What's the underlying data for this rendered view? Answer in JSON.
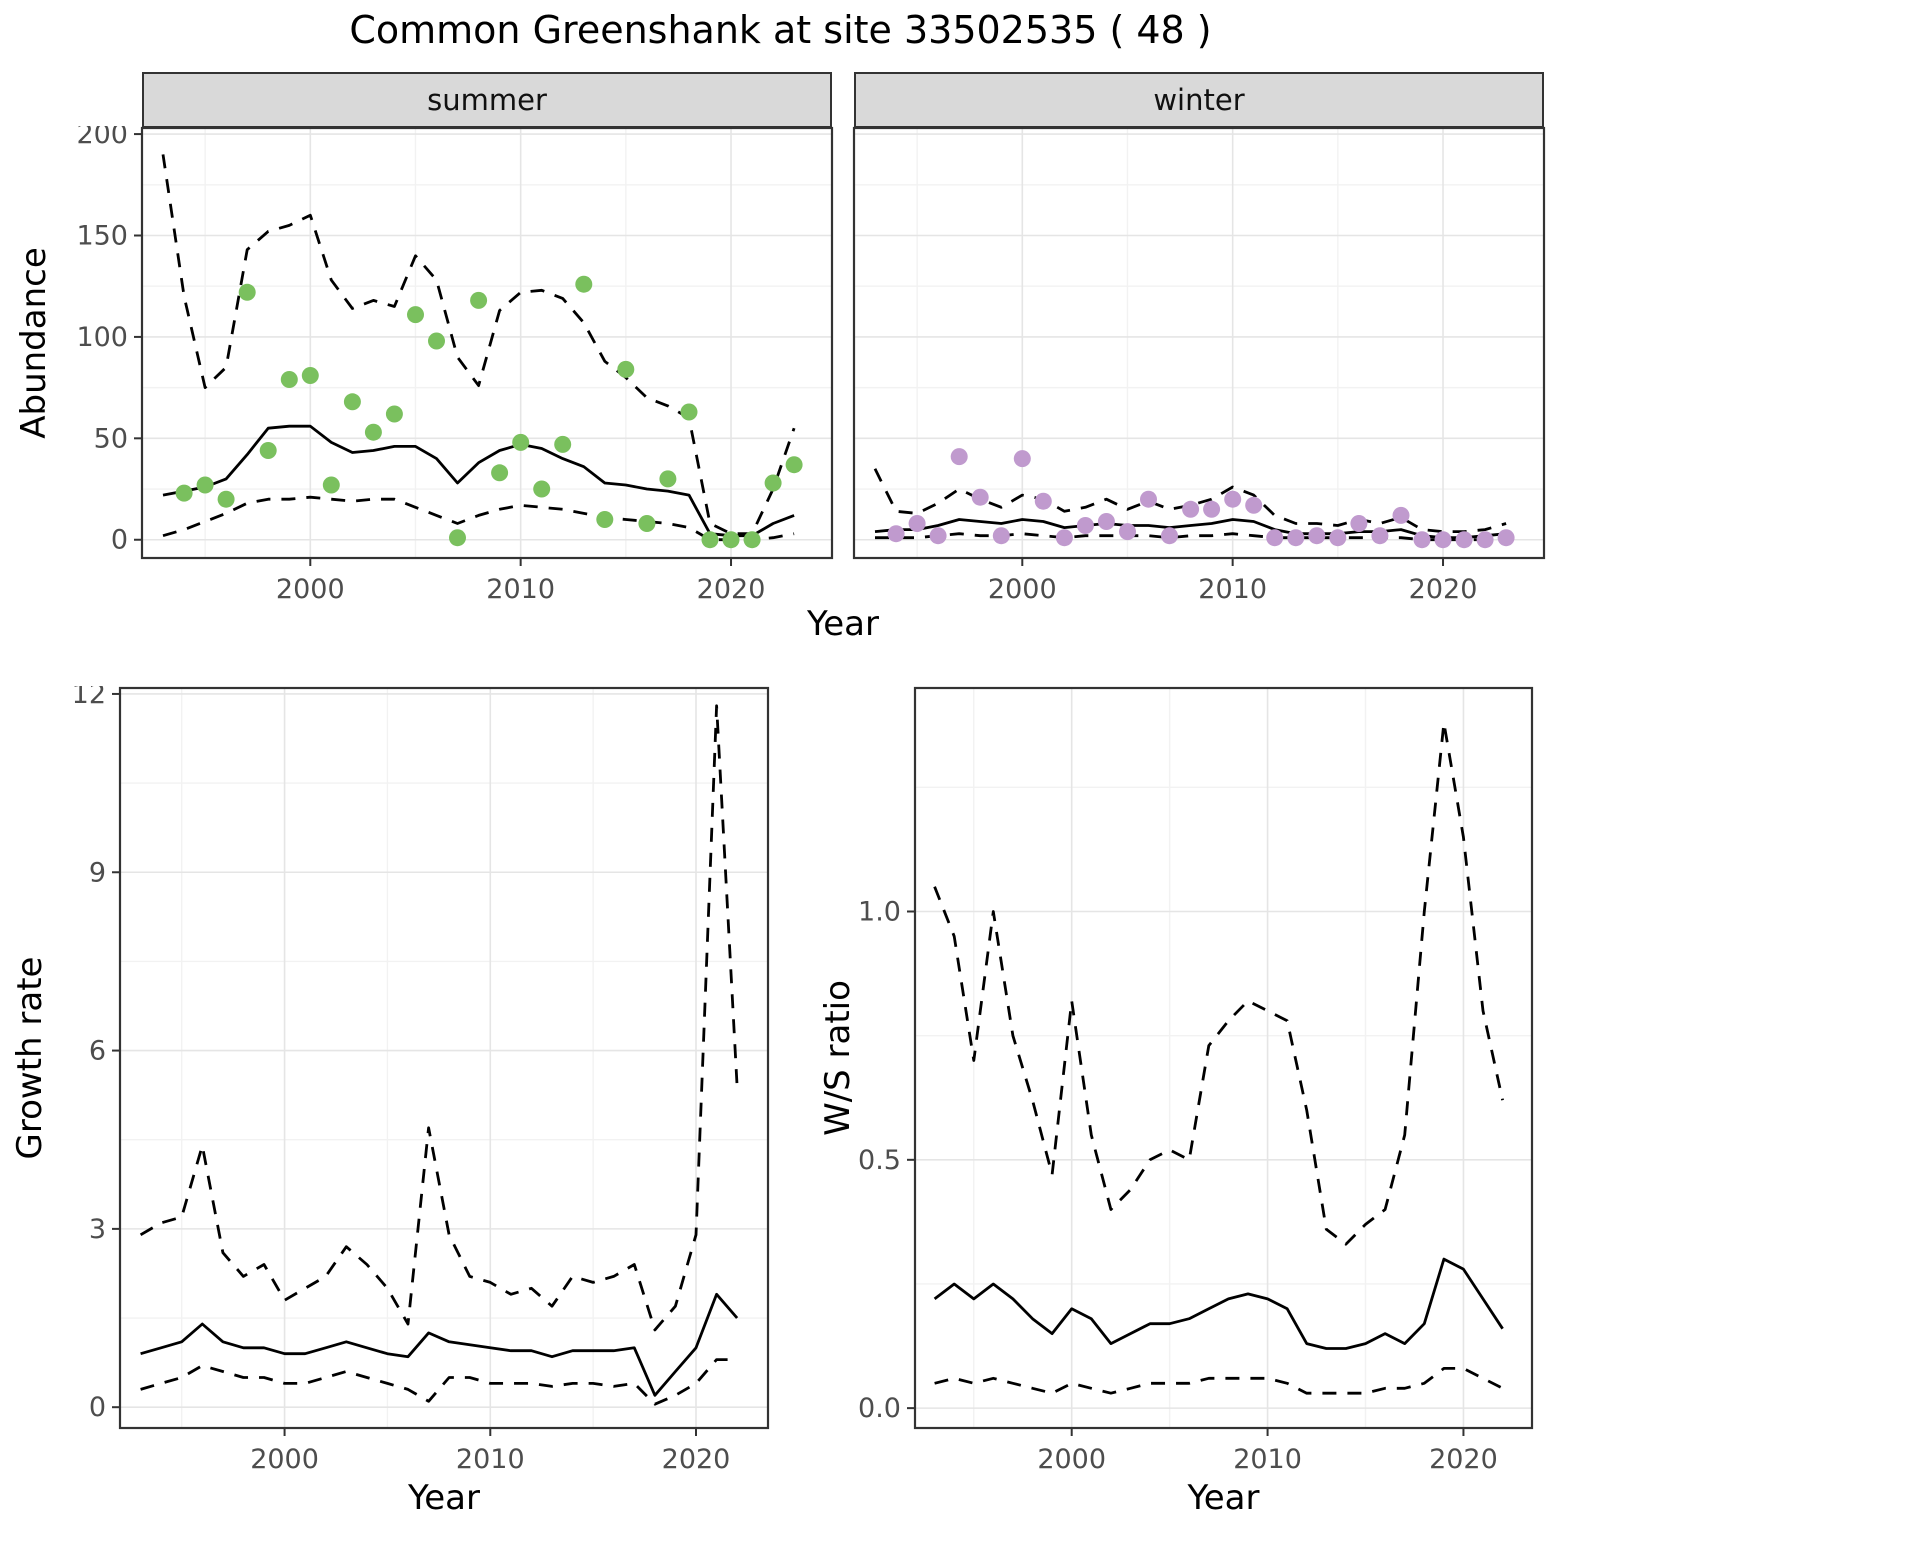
{
  "chart_data": {
    "type": "line",
    "title": "Common Greenshank at site 33502535 ( 48 )",
    "top_xlabel": "Year",
    "line_color": "#000000",
    "ci_style": "dashed",
    "grid": true,
    "panels": {
      "summer": {
        "facet_label": "summer",
        "ylabel": "Abundance",
        "xlim": [
          1992,
          2024.8
        ],
        "ylim": [
          -9,
          203
        ],
        "xticks": [
          2000,
          2010,
          2020
        ],
        "xtick_labels": [
          "2000",
          "2010",
          "2020"
        ],
        "yticks": [
          0,
          50,
          100,
          150,
          200
        ],
        "ytick_labels": [
          "0",
          "50",
          "100",
          "150",
          "200"
        ],
        "point_color": "#7ac05e",
        "years": [
          1993,
          1994,
          1995,
          1996,
          1997,
          1998,
          1999,
          2000,
          2001,
          2002,
          2003,
          2004,
          2005,
          2006,
          2007,
          2008,
          2009,
          2010,
          2011,
          2012,
          2013,
          2014,
          2015,
          2016,
          2017,
          2018,
          2019,
          2020,
          2021,
          2022,
          2023
        ],
        "mean": [
          22,
          24,
          26,
          30,
          42,
          55,
          56,
          56,
          48,
          43,
          44,
          46,
          46,
          40,
          28,
          38,
          44,
          47,
          45,
          40,
          36,
          28,
          27,
          25,
          24,
          22,
          3,
          2,
          2,
          8,
          12
        ],
        "upper": [
          190,
          120,
          75,
          85,
          143,
          152,
          155,
          160,
          128,
          114,
          118,
          115,
          140,
          128,
          90,
          76,
          113,
          122,
          123,
          119,
          107,
          88,
          80,
          70,
          66,
          60,
          8,
          3,
          3,
          25,
          55
        ],
        "lower": [
          2,
          5,
          9,
          13,
          18,
          20,
          20,
          21,
          20,
          19,
          20,
          20,
          16,
          12,
          8,
          12,
          15,
          17,
          16,
          15,
          13,
          11,
          10,
          9,
          8,
          6,
          0,
          0,
          0,
          1,
          3
        ],
        "point_years": [
          1994,
          1995,
          1996,
          1997,
          1998,
          1999,
          2000,
          2001,
          2002,
          2003,
          2004,
          2005,
          2006,
          2007,
          2008,
          2009,
          2010,
          2011,
          2012,
          2013,
          2014,
          2015,
          2016,
          2017,
          2018,
          2019,
          2020,
          2021,
          2022,
          2023
        ],
        "points": [
          23,
          27,
          20,
          122,
          44,
          79,
          81,
          27,
          68,
          53,
          62,
          111,
          98,
          1,
          118,
          33,
          48,
          25,
          47,
          126,
          10,
          84,
          8,
          30,
          63,
          0,
          0,
          0,
          28,
          37
        ]
      },
      "winter": {
        "facet_label": "winter",
        "xlim": [
          1992,
          2024.8
        ],
        "ylim": [
          -9,
          203
        ],
        "xticks": [
          2000,
          2010,
          2020
        ],
        "xtick_labels": [
          "2000",
          "2010",
          "2020"
        ],
        "yticks": [
          0,
          50,
          100,
          150,
          200
        ],
        "ytick_labels": null,
        "point_color": "#c09ace",
        "years": [
          1993,
          1994,
          1995,
          1996,
          1997,
          1998,
          1999,
          2000,
          2001,
          2002,
          2003,
          2004,
          2005,
          2006,
          2007,
          2008,
          2009,
          2010,
          2011,
          2012,
          2013,
          2014,
          2015,
          2016,
          2017,
          2018,
          2019,
          2020,
          2021,
          2022,
          2023
        ],
        "mean": [
          4,
          5,
          5,
          7,
          10,
          9,
          8,
          10,
          9,
          6,
          7,
          8,
          7,
          7,
          6,
          7,
          8,
          10,
          9,
          5,
          3,
          3,
          3,
          4,
          4,
          5,
          2,
          1,
          1,
          2,
          3
        ],
        "upper": [
          35,
          14,
          13,
          18,
          25,
          20,
          16,
          22,
          20,
          14,
          16,
          20,
          15,
          19,
          15,
          17,
          20,
          26,
          22,
          12,
          8,
          8,
          7,
          10,
          8,
          11,
          5,
          4,
          4,
          5,
          8
        ],
        "lower": [
          1,
          1,
          1,
          2,
          3,
          2,
          2,
          3,
          2,
          1,
          2,
          2,
          2,
          2,
          1,
          2,
          2,
          3,
          2,
          1,
          1,
          1,
          1,
          1,
          1,
          1,
          0,
          0,
          0,
          0,
          1
        ],
        "point_years": [
          1994,
          1995,
          1996,
          1997,
          1998,
          1999,
          2000,
          2001,
          2002,
          2003,
          2004,
          2005,
          2006,
          2007,
          2008,
          2009,
          2010,
          2011,
          2012,
          2013,
          2014,
          2015,
          2016,
          2017,
          2018,
          2019,
          2020,
          2021,
          2022,
          2023
        ],
        "points": [
          3,
          8,
          2,
          41,
          21,
          2,
          40,
          19,
          1,
          7,
          9,
          4,
          20,
          2,
          15,
          15,
          20,
          17,
          1,
          1,
          2,
          1,
          8,
          2,
          12,
          0,
          0,
          0,
          0,
          1
        ]
      },
      "growth": {
        "ylabel": "Growth rate",
        "xlabel": "Year",
        "xlim": [
          1992,
          2023.5
        ],
        "ylim": [
          -0.35,
          12.1
        ],
        "xticks": [
          2000,
          2010,
          2020
        ],
        "xtick_labels": [
          "2000",
          "2010",
          "2020"
        ],
        "yticks": [
          0,
          3,
          6,
          9,
          12
        ],
        "ytick_labels": [
          "0",
          "3",
          "6",
          "9",
          "12"
        ],
        "years": [
          1993,
          1994,
          1995,
          1996,
          1997,
          1998,
          1999,
          2000,
          2001,
          2002,
          2003,
          2004,
          2005,
          2006,
          2007,
          2008,
          2009,
          2010,
          2011,
          2012,
          2013,
          2014,
          2015,
          2016,
          2017,
          2018,
          2019,
          2020,
          2021,
          2022
        ],
        "mean": [
          0.9,
          1.0,
          1.1,
          1.4,
          1.1,
          1.0,
          1.0,
          0.9,
          0.9,
          1.0,
          1.1,
          1.0,
          0.9,
          0.85,
          1.25,
          1.1,
          1.05,
          1.0,
          0.95,
          0.95,
          0.85,
          0.95,
          0.95,
          0.95,
          1.0,
          0.2,
          0.6,
          1.0,
          1.9,
          1.5
        ],
        "upper": [
          2.9,
          3.1,
          3.2,
          4.4,
          2.6,
          2.2,
          2.4,
          1.8,
          2.0,
          2.2,
          2.7,
          2.4,
          2.0,
          1.4,
          4.7,
          2.9,
          2.2,
          2.1,
          1.9,
          2.0,
          1.7,
          2.2,
          2.1,
          2.2,
          2.4,
          1.3,
          1.7,
          2.9,
          11.8,
          5.4
        ],
        "lower": [
          0.3,
          0.4,
          0.5,
          0.7,
          0.6,
          0.5,
          0.5,
          0.4,
          0.4,
          0.5,
          0.6,
          0.5,
          0.4,
          0.3,
          0.1,
          0.5,
          0.5,
          0.4,
          0.4,
          0.4,
          0.35,
          0.4,
          0.4,
          0.35,
          0.4,
          0.05,
          0.2,
          0.4,
          0.8,
          0.8
        ]
      },
      "ws": {
        "ylabel": "W/S ratio",
        "xlabel": "Year",
        "xlim": [
          1992,
          2023.5
        ],
        "ylim": [
          -0.04,
          1.45
        ],
        "xticks": [
          2000,
          2010,
          2020
        ],
        "xtick_labels": [
          "2000",
          "2010",
          "2020"
        ],
        "yticks": [
          0,
          0.5,
          1.0
        ],
        "ytick_labels": [
          "0.0",
          "0.5",
          "1.0"
        ],
        "years": [
          1993,
          1994,
          1995,
          1996,
          1997,
          1998,
          1999,
          2000,
          2001,
          2002,
          2003,
          2004,
          2005,
          2006,
          2007,
          2008,
          2009,
          2010,
          2011,
          2012,
          2013,
          2014,
          2015,
          2016,
          2017,
          2018,
          2019,
          2020,
          2021,
          2022
        ],
        "mean": [
          0.22,
          0.25,
          0.22,
          0.25,
          0.22,
          0.18,
          0.15,
          0.2,
          0.18,
          0.13,
          0.15,
          0.17,
          0.17,
          0.18,
          0.2,
          0.22,
          0.23,
          0.22,
          0.2,
          0.13,
          0.12,
          0.12,
          0.13,
          0.15,
          0.13,
          0.17,
          0.3,
          0.28,
          0.22,
          0.16
        ],
        "upper": [
          1.05,
          0.95,
          0.7,
          1.0,
          0.75,
          0.62,
          0.47,
          0.82,
          0.55,
          0.4,
          0.44,
          0.5,
          0.52,
          0.5,
          0.73,
          0.78,
          0.82,
          0.8,
          0.78,
          0.6,
          0.36,
          0.33,
          0.37,
          0.4,
          0.55,
          1.0,
          1.38,
          1.15,
          0.8,
          0.62
        ],
        "lower": [
          0.05,
          0.06,
          0.05,
          0.06,
          0.05,
          0.04,
          0.03,
          0.05,
          0.04,
          0.03,
          0.04,
          0.05,
          0.05,
          0.05,
          0.06,
          0.06,
          0.06,
          0.06,
          0.05,
          0.03,
          0.03,
          0.03,
          0.03,
          0.04,
          0.04,
          0.05,
          0.08,
          0.08,
          0.06,
          0.04
        ]
      }
    }
  }
}
